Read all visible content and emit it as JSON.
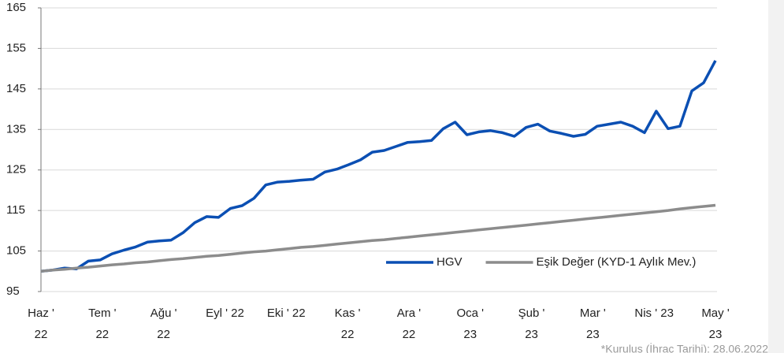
{
  "chart_data": {
    "type": "line",
    "xlabels": [
      "Haz '\n22",
      "Tem '\n22",
      "Ağu '\n22",
      "Eyl ' 22",
      "Eki ' 22",
      "Kas '\n22",
      "Ara '\n22",
      "Oca '\n23",
      "Şub '\n23",
      "Mar '\n23",
      "Nis ' 23",
      "May '\n23"
    ],
    "series": [
      {
        "name": "HGV",
        "color": "#0b4fb3",
        "values": [
          100,
          100.3,
          100.8,
          100.6,
          102.5,
          102.8,
          104.3,
          105.2,
          106,
          107.2,
          107.5,
          107.7,
          109.5,
          112,
          113.5,
          113.3,
          115.5,
          116.2,
          118,
          121.3,
          122,
          122.2,
          122.5,
          122.7,
          124.5,
          125.2,
          126.3,
          127.5,
          129.4,
          129.8,
          130.8,
          131.8,
          132,
          132.3,
          135.2,
          136.8,
          133.7,
          134.4,
          134.7,
          134.2,
          133.3,
          135.5,
          136.3,
          134.6,
          134,
          133.3,
          133.8,
          135.8,
          136.3,
          136.8,
          135.8,
          134.2,
          139.5,
          135.2,
          135.8,
          144.5,
          146.5,
          152
        ]
      },
      {
        "name": "Eşik Değer (KYD-1 Aylık Mev.)",
        "color": "#8c8c8c",
        "values": [
          100.0,
          100.3,
          100.5,
          100.8,
          101.0,
          101.3,
          101.6,
          101.8,
          102.1,
          102.3,
          102.6,
          102.9,
          103.1,
          103.4,
          103.7,
          103.9,
          104.2,
          104.5,
          104.8,
          105.0,
          105.3,
          105.6,
          105.9,
          106.1,
          106.4,
          106.7,
          107.0,
          107.3,
          107.6,
          107.8,
          108.1,
          108.4,
          108.7,
          109.0,
          109.3,
          109.6,
          109.9,
          110.2,
          110.5,
          110.8,
          111.1,
          111.4,
          111.7,
          112.0,
          112.3,
          112.6,
          112.9,
          113.2,
          113.5,
          113.8,
          114.1,
          114.4,
          114.7,
          115.0,
          115.4,
          115.7,
          116.0,
          116.3
        ]
      }
    ],
    "ylim": [
      95,
      165
    ],
    "yticks": [
      95,
      105,
      115,
      125,
      135,
      145,
      155,
      165
    ],
    "grid": true,
    "legend": "lower right",
    "footnote": "*Kuruluş (İhraç Tarihi): 28.06.2022"
  }
}
